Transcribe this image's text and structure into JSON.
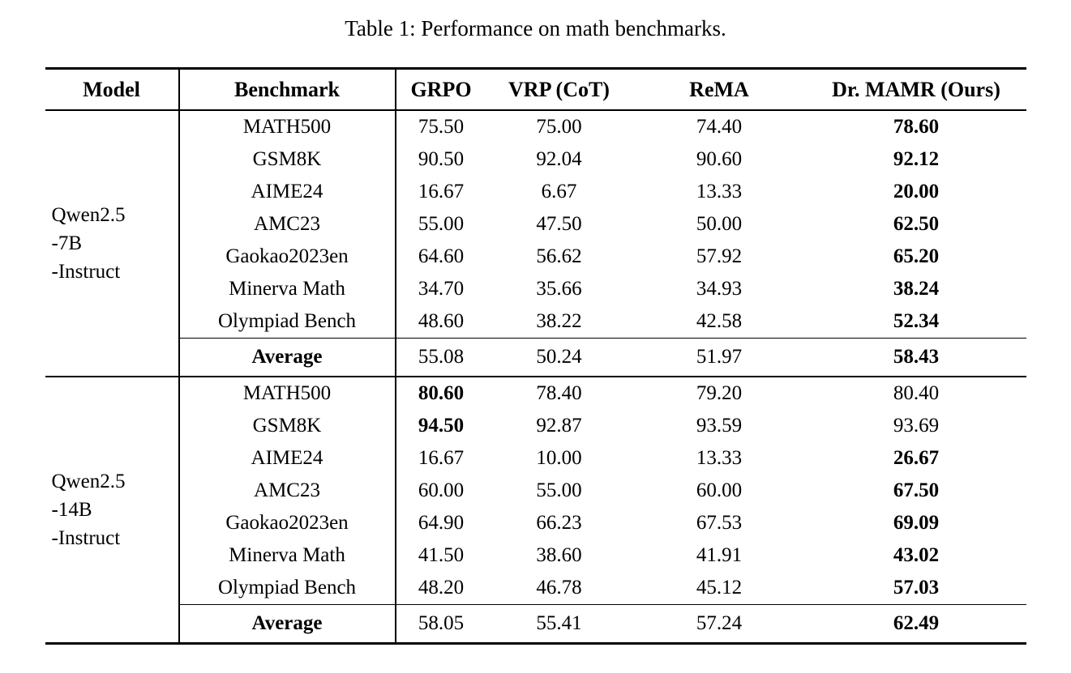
{
  "title": "Table 1: Performance on math benchmarks.",
  "colors": {
    "background": "#ffffff",
    "text": "#000000",
    "rules": "#000000"
  },
  "table": {
    "columns": [
      "Model",
      "Benchmark",
      "GRPO",
      "VRP (CoT)",
      "ReMA",
      "Dr. MAMR (Ours)"
    ],
    "sections": [
      {
        "model": "Qwen2.5-7B-Instruct",
        "model_lines": [
          "Qwen2.5",
          "-7B",
          "-Instruct"
        ],
        "rows": [
          {
            "benchmark": "MATH500",
            "values": [
              "75.50",
              "75.00",
              "74.40",
              "78.60"
            ],
            "bold": [
              false,
              false,
              false,
              true
            ]
          },
          {
            "benchmark": "GSM8K",
            "values": [
              "90.50",
              "92.04",
              "90.60",
              "92.12"
            ],
            "bold": [
              false,
              false,
              false,
              true
            ]
          },
          {
            "benchmark": "AIME24",
            "values": [
              "16.67",
              "6.67",
              "13.33",
              "20.00"
            ],
            "bold": [
              false,
              false,
              false,
              true
            ]
          },
          {
            "benchmark": "AMC23",
            "values": [
              "55.00",
              "47.50",
              "50.00",
              "62.50"
            ],
            "bold": [
              false,
              false,
              false,
              true
            ]
          },
          {
            "benchmark": "Gaokao2023en",
            "values": [
              "64.60",
              "56.62",
              "57.92",
              "65.20"
            ],
            "bold": [
              false,
              false,
              false,
              true
            ]
          },
          {
            "benchmark": "Minerva Math",
            "values": [
              "34.70",
              "35.66",
              "34.93",
              "38.24"
            ],
            "bold": [
              false,
              false,
              false,
              true
            ]
          },
          {
            "benchmark": "Olympiad Bench",
            "values": [
              "48.60",
              "38.22",
              "42.58",
              "52.34"
            ],
            "bold": [
              false,
              false,
              false,
              true
            ]
          }
        ],
        "average": {
          "label": "Average",
          "values": [
            "55.08",
            "50.24",
            "51.97",
            "58.43"
          ],
          "bold": [
            false,
            false,
            false,
            true
          ]
        }
      },
      {
        "model": "Qwen2.5-14B-Instruct",
        "model_lines": [
          "Qwen2.5",
          "-14B",
          "-Instruct"
        ],
        "rows": [
          {
            "benchmark": "MATH500",
            "values": [
              "80.60",
              "78.40",
              "79.20",
              "80.40"
            ],
            "bold": [
              true,
              false,
              false,
              false
            ]
          },
          {
            "benchmark": "GSM8K",
            "values": [
              "94.50",
              "92.87",
              "93.59",
              "93.69"
            ],
            "bold": [
              true,
              false,
              false,
              false
            ]
          },
          {
            "benchmark": "AIME24",
            "values": [
              "16.67",
              "10.00",
              "13.33",
              "26.67"
            ],
            "bold": [
              false,
              false,
              false,
              true
            ]
          },
          {
            "benchmark": "AMC23",
            "values": [
              "60.00",
              "55.00",
              "60.00",
              "67.50"
            ],
            "bold": [
              false,
              false,
              false,
              true
            ]
          },
          {
            "benchmark": "Gaokao2023en",
            "values": [
              "64.90",
              "66.23",
              "67.53",
              "69.09"
            ],
            "bold": [
              false,
              false,
              false,
              true
            ]
          },
          {
            "benchmark": "Minerva Math",
            "values": [
              "41.50",
              "38.60",
              "41.91",
              "43.02"
            ],
            "bold": [
              false,
              false,
              false,
              true
            ]
          },
          {
            "benchmark": "Olympiad Bench",
            "values": [
              "48.20",
              "46.78",
              "45.12",
              "57.03"
            ],
            "bold": [
              false,
              false,
              false,
              true
            ]
          }
        ],
        "average": {
          "label": "Average",
          "values": [
            "58.05",
            "55.41",
            "57.24",
            "62.49"
          ],
          "bold": [
            false,
            false,
            false,
            true
          ]
        }
      }
    ]
  }
}
